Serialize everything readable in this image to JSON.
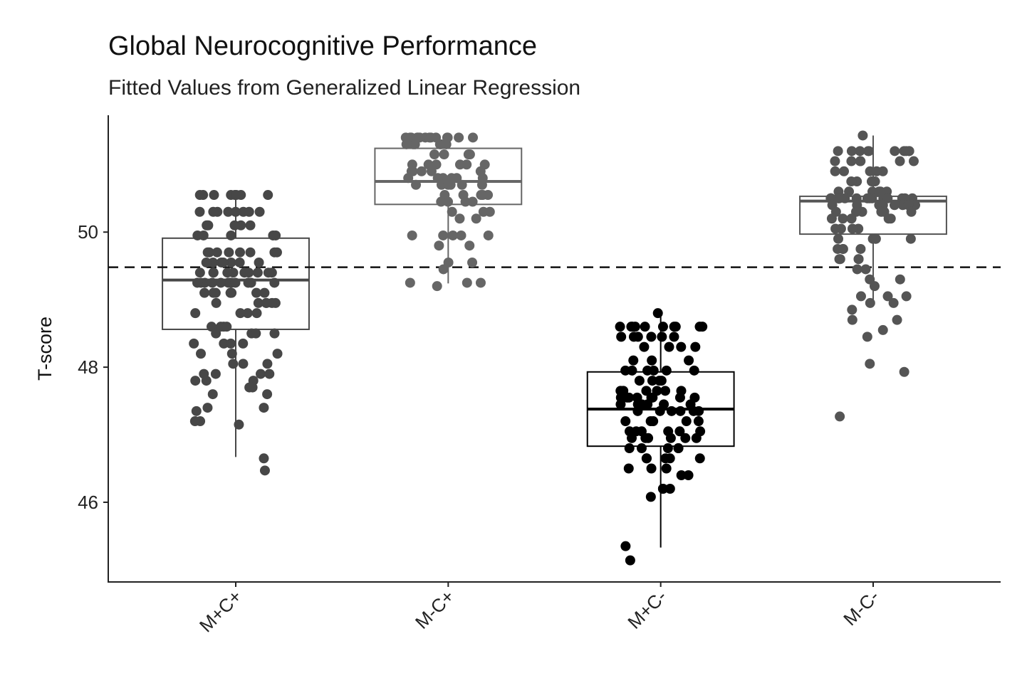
{
  "chart_data": {
    "type": "box",
    "title": "Global Neurocognitive Performance",
    "subtitle": "Fitted Values from Generalized Linear Regression",
    "xlabel": "",
    "ylabel": "T-score",
    "ylim": [
      44.82,
      51.73
    ],
    "yticks": [
      46,
      48,
      50
    ],
    "reference_line": {
      "y": 49.48,
      "style": "dashed"
    },
    "grid": false,
    "categories": [
      "M+C+",
      "M-C+",
      "M+C-",
      "M-C-"
    ],
    "colors": [
      "#474747",
      "#666666",
      "#000000",
      "#555555"
    ],
    "boxes": [
      {
        "whisker_low": 46.67,
        "q1": 48.56,
        "median": 49.29,
        "q3": 49.91,
        "whisker_high": 50.57
      },
      {
        "whisker_low": 49.24,
        "q1": 50.41,
        "median": 50.75,
        "q3": 51.24,
        "whisker_high": 51.43
      },
      {
        "whisker_low": 45.33,
        "q1": 46.83,
        "median": 47.38,
        "q3": 47.93,
        "whisker_high": 48.85
      },
      {
        "whisker_low": 48.9,
        "q1": 49.97,
        "median": 50.46,
        "q3": 50.53,
        "whisker_high": 51.43
      }
    ],
    "points": [
      [
        50.55,
        50.55,
        50.55,
        50.55,
        50.55,
        50.55,
        50.55,
        50.55,
        50.3,
        50.3,
        50.3,
        50.3,
        50.3,
        50.3,
        50.3,
        50.3,
        50.1,
        50.1,
        50.1,
        50.1,
        50.1,
        49.95,
        49.95,
        49.95,
        49.95,
        49.95,
        49.7,
        49.7,
        49.7,
        49.7,
        49.7,
        49.7,
        49.7,
        49.7,
        49.55,
        49.55,
        49.55,
        49.55,
        49.55,
        49.55,
        49.55,
        49.55,
        49.4,
        49.4,
        49.4,
        49.4,
        49.4,
        49.4,
        49.4,
        49.4,
        49.4,
        49.4,
        49.25,
        49.25,
        49.25,
        49.25,
        49.25,
        49.25,
        49.25,
        49.25,
        49.25,
        49.25,
        49.25,
        49.25,
        49.1,
        49.1,
        49.1,
        49.1,
        49.1,
        49.1,
        49.1,
        49.1,
        48.95,
        48.95,
        48.95,
        48.95,
        48.95,
        48.95,
        48.8,
        48.8,
        48.8,
        48.8,
        48.6,
        48.6,
        48.6,
        48.6,
        48.5,
        48.5,
        48.5,
        48.5,
        48.35,
        48.35,
        48.35,
        48.35,
        48.2,
        48.2,
        48.2,
        48.05,
        48.05,
        48.05,
        47.9,
        47.9,
        47.9,
        47.9,
        47.8,
        47.8,
        47.8,
        47.7,
        47.7,
        47.6,
        47.6,
        47.4,
        47.4,
        47.35,
        47.2,
        47.2,
        47.15,
        46.65,
        46.47
      ],
      [
        51.4,
        51.4,
        51.4,
        51.4,
        51.4,
        51.4,
        51.4,
        51.4,
        51.4,
        51.4,
        51.4,
        51.4,
        51.4,
        51.4,
        51.3,
        51.3,
        51.3,
        51.3,
        51.3,
        51.3,
        51.15,
        51.15,
        51.15,
        51.15,
        51.0,
        51.0,
        51.0,
        51.0,
        51.0,
        51.0,
        50.9,
        50.9,
        50.9,
        50.9,
        50.9,
        50.8,
        50.8,
        50.8,
        50.8,
        50.8,
        50.8,
        50.7,
        50.7,
        50.7,
        50.7,
        50.7,
        50.7,
        50.55,
        50.55,
        50.55,
        50.55,
        50.55,
        50.45,
        50.45,
        50.45,
        50.45,
        50.3,
        50.3,
        50.3,
        50.2,
        50.2,
        49.95,
        49.95,
        49.95,
        49.95,
        49.95,
        49.8,
        49.8,
        49.55,
        49.55,
        49.45,
        49.25,
        49.25,
        49.25,
        49.2
      ],
      [
        48.8,
        48.6,
        48.6,
        48.6,
        48.6,
        48.6,
        48.6,
        48.6,
        48.6,
        48.6,
        48.6,
        48.45,
        48.45,
        48.45,
        48.45,
        48.45,
        48.45,
        48.3,
        48.3,
        48.3,
        48.3,
        48.1,
        48.1,
        48.1,
        47.95,
        47.95,
        47.95,
        47.95,
        47.95,
        47.95,
        47.8,
        47.8,
        47.8,
        47.8,
        47.65,
        47.65,
        47.65,
        47.65,
        47.65,
        47.65,
        47.55,
        47.55,
        47.55,
        47.55,
        47.55,
        47.55,
        47.55,
        47.55,
        47.45,
        47.45,
        47.45,
        47.45,
        47.45,
        47.45,
        47.35,
        47.35,
        47.35,
        47.35,
        47.35,
        47.35,
        47.2,
        47.2,
        47.2,
        47.2,
        47.2,
        47.05,
        47.05,
        47.05,
        47.05,
        47.05,
        47.05,
        46.95,
        46.95,
        46.95,
        46.95,
        46.95,
        46.95,
        46.8,
        46.8,
        46.8,
        46.8,
        46.8,
        46.65,
        46.65,
        46.65,
        46.65,
        46.65,
        46.5,
        46.5,
        46.5,
        46.4,
        46.4,
        46.2,
        46.2,
        46.2,
        46.08,
        45.35,
        45.14
      ],
      [
        51.43,
        51.2,
        51.2,
        51.2,
        51.2,
        51.2,
        51.2,
        51.2,
        51.2,
        51.2,
        51.2,
        51.05,
        51.05,
        51.05,
        51.05,
        51.05,
        51.05,
        50.9,
        50.9,
        50.9,
        50.9,
        50.9,
        50.75,
        50.75,
        50.75,
        50.75,
        50.6,
        50.6,
        50.6,
        50.6,
        50.6,
        50.6,
        50.5,
        50.5,
        50.5,
        50.5,
        50.5,
        50.5,
        50.5,
        50.5,
        50.5,
        50.5,
        50.5,
        50.5,
        50.5,
        50.5,
        50.5,
        50.4,
        50.4,
        50.4,
        50.4,
        50.4,
        50.4,
        50.4,
        50.4,
        50.3,
        50.3,
        50.3,
        50.3,
        50.3,
        50.3,
        50.2,
        50.2,
        50.2,
        50.2,
        50.2,
        50.05,
        50.05,
        50.05,
        50.05,
        49.9,
        49.9,
        49.9,
        49.9,
        49.9,
        49.75,
        49.75,
        49.75,
        49.75,
        49.6,
        49.6,
        49.6,
        49.6,
        49.45,
        49.45,
        49.3,
        49.3,
        49.2,
        49.05,
        49.05,
        49.05,
        48.95,
        48.95,
        48.85,
        48.7,
        48.7,
        48.55,
        48.45,
        48.05,
        47.93,
        47.27
      ]
    ]
  }
}
